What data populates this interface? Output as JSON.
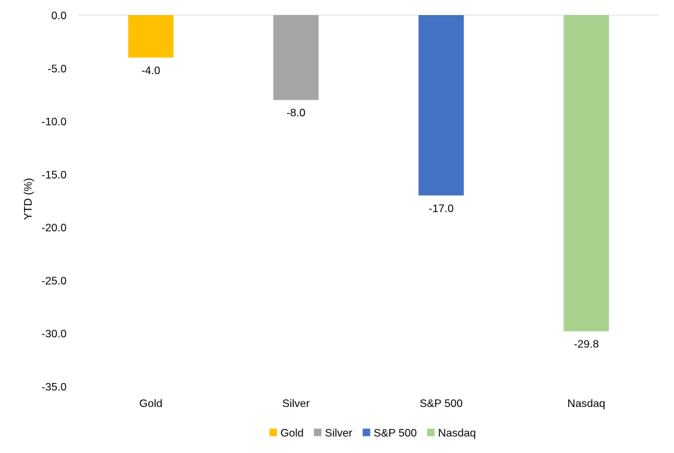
{
  "chart_data": {
    "type": "bar",
    "categories": [
      "Gold",
      "Silver",
      "S&P 500",
      "Nasdaq"
    ],
    "values": [
      -4.0,
      -8.0,
      -17.0,
      -29.8
    ],
    "data_labels": [
      "-4.0",
      "-8.0",
      "-17.0",
      "-29.8"
    ],
    "colors": [
      "#FFC000",
      "#A5A5A5",
      "#4472C4",
      "#A9D18E"
    ],
    "title": "",
    "xlabel": "",
    "ylabel": "YTD (%)",
    "ylim": [
      -35,
      0
    ],
    "yticks": [
      0,
      -5,
      -10,
      -15,
      -20,
      -25,
      -30,
      -35
    ],
    "ytick_labels": [
      "0.0",
      "-5.0",
      "-10.0",
      "-15.0",
      "-20.0",
      "-25.0",
      "-30.0",
      "-35.0"
    ],
    "grid": false,
    "legend": {
      "position": "bottom",
      "entries": [
        "Gold",
        "Silver",
        "S&P 500",
        "Nasdaq"
      ]
    }
  }
}
